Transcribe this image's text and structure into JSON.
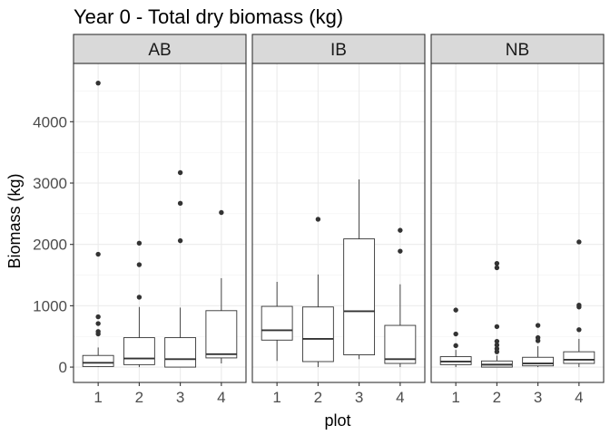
{
  "chart_data": {
    "type": "boxplot",
    "title": "Year 0 - Total dry biomass (kg)",
    "xlabel": "plot",
    "ylabel": "Biomass (kg)",
    "ylim": [
      -250,
      4950
    ],
    "yticks": [
      0,
      1000,
      2000,
      3000,
      4000
    ],
    "categories": [
      "1",
      "2",
      "3",
      "4"
    ],
    "grid": true,
    "facets": [
      {
        "label": "AB",
        "boxes": [
          {
            "x": "1",
            "q1": 10,
            "median": 70,
            "q3": 190,
            "whisker_low": 0,
            "whisker_high": 320,
            "outliers": [
              4630,
              1840,
              820,
              710,
              580,
              540
            ]
          },
          {
            "x": "2",
            "q1": 40,
            "median": 140,
            "q3": 480,
            "whisker_low": 0,
            "whisker_high": 980,
            "outliers": [
              2020,
              1670,
              1140
            ]
          },
          {
            "x": "3",
            "q1": 0,
            "median": 130,
            "q3": 480,
            "whisker_low": 0,
            "whisker_high": 970,
            "outliers": [
              3170,
              2670,
              2060
            ]
          },
          {
            "x": "4",
            "q1": 150,
            "median": 210,
            "q3": 920,
            "whisker_low": 60,
            "whisker_high": 1450,
            "outliers": [
              2520
            ]
          }
        ]
      },
      {
        "label": "IB",
        "boxes": [
          {
            "x": "1",
            "q1": 440,
            "median": 600,
            "q3": 990,
            "whisker_low": 100,
            "whisker_high": 1390,
            "outliers": []
          },
          {
            "x": "2",
            "q1": 90,
            "median": 460,
            "q3": 980,
            "whisker_low": 0,
            "whisker_high": 1510,
            "outliers": [
              2410
            ]
          },
          {
            "x": "3",
            "q1": 200,
            "median": 910,
            "q3": 2090,
            "whisker_low": 130,
            "whisker_high": 3060,
            "outliers": []
          },
          {
            "x": "4",
            "q1": 60,
            "median": 130,
            "q3": 680,
            "whisker_low": 0,
            "whisker_high": 1350,
            "outliers": [
              2230,
              1890
            ]
          }
        ]
      },
      {
        "label": "NB",
        "boxes": [
          {
            "x": "1",
            "q1": 40,
            "median": 90,
            "q3": 170,
            "whisker_low": 0,
            "whisker_high": 280,
            "outliers": [
              930,
              540,
              350
            ]
          },
          {
            "x": "2",
            "q1": 0,
            "median": 40,
            "q3": 100,
            "whisker_low": 0,
            "whisker_high": 190,
            "outliers": [
              1690,
              1620,
              660,
              420,
              360,
              300,
              250
            ]
          },
          {
            "x": "3",
            "q1": 20,
            "median": 60,
            "q3": 160,
            "whisker_low": 0,
            "whisker_high": 340,
            "outliers": [
              680,
              480,
              430
            ]
          },
          {
            "x": "4",
            "q1": 60,
            "median": 120,
            "q3": 250,
            "whisker_low": 0,
            "whisker_high": 460,
            "outliers": [
              2040,
              1010,
              980,
              610
            ]
          }
        ]
      }
    ]
  }
}
